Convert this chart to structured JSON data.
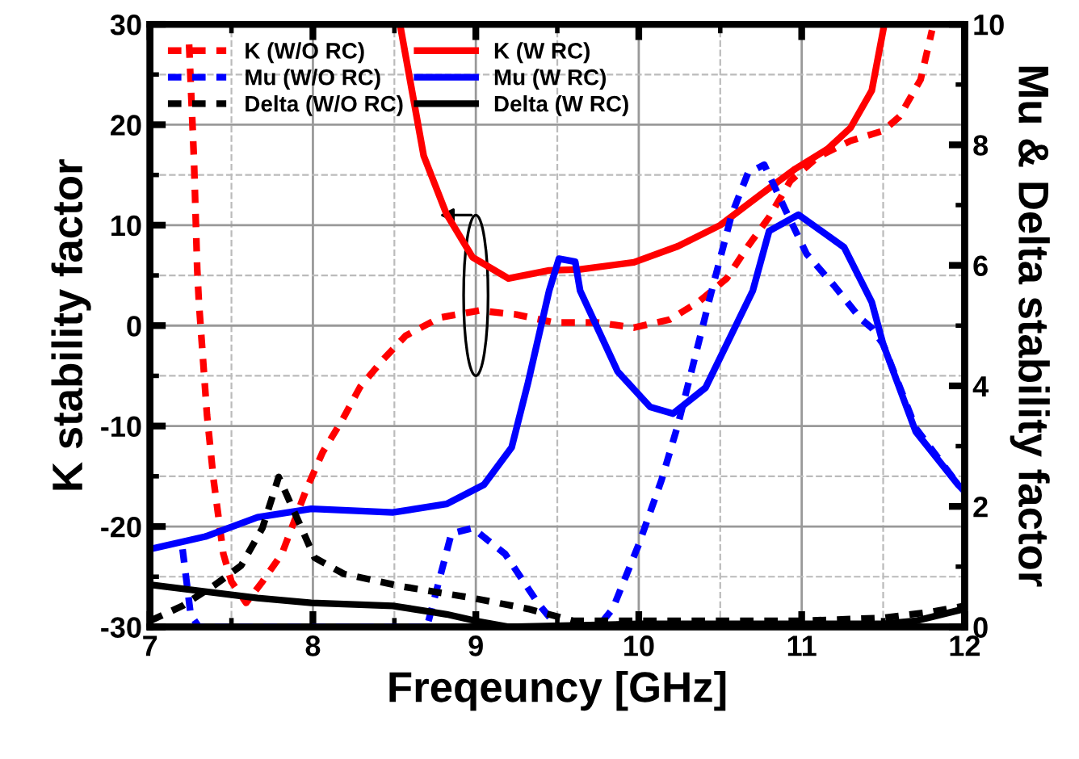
{
  "chart_data": {
    "type": "line",
    "xlabel": "Freqeuncy [GHz]",
    "ylabel": "K stability factor",
    "y2label": "Mu & Delta stability factor",
    "xlim": [
      7,
      12
    ],
    "xticks": [
      7,
      8,
      9,
      10,
      11,
      12
    ],
    "ylim": [
      -30,
      30
    ],
    "yticks": [
      -30,
      -20,
      -10,
      0,
      10,
      20,
      30
    ],
    "y2lim": [
      0,
      10
    ],
    "y2ticks": [
      0,
      2,
      4,
      6,
      8,
      10
    ],
    "grid": true,
    "legend": "top left",
    "marker": "none",
    "series": [
      {
        "name": "K (W/O RC)",
        "color": "#ff0000",
        "line_style": "dashed",
        "x": [
          7.24,
          7.27,
          7.29,
          7.3,
          7.35,
          7.39,
          7.45,
          7.5,
          7.59,
          7.69,
          7.81,
          7.96,
          8.06,
          8.18,
          8.29,
          8.43,
          8.57,
          8.78,
          9.02,
          9.25,
          9.48,
          9.75,
          9.97,
          10.19,
          10.37,
          10.54,
          10.67,
          10.8,
          10.93,
          11.1,
          11.3,
          11.5,
          11.6,
          11.73,
          11.8
        ],
        "values": [
          28,
          16.5,
          5.6,
          2.4,
          -8.9,
          -15.3,
          -22.7,
          -25.5,
          -27.6,
          -25.5,
          -22.7,
          -16.3,
          -12.6,
          -9.4,
          -6.1,
          -3.4,
          -1.0,
          0.8,
          1.5,
          1.1,
          0.3,
          0.3,
          -0.2,
          0.6,
          2.4,
          4.7,
          7.9,
          10.8,
          14.4,
          16.8,
          18.4,
          19.4,
          20.8,
          24.5,
          29.4
        ]
      },
      {
        "name": "K (W RC)",
        "color": "#ff0000",
        "line_style": "solid",
        "x": [
          8.54,
          8.68,
          8.82,
          8.98,
          9.2,
          9.45,
          9.64,
          9.97,
          10.24,
          10.5,
          10.76,
          10.96,
          11.16,
          11.3,
          11.43,
          11.5
        ],
        "values": [
          29.5,
          16.9,
          11.1,
          6.8,
          4.7,
          5.5,
          5.6,
          6.3,
          7.9,
          10.0,
          13.2,
          15.6,
          17.6,
          19.7,
          23.4,
          29.4
        ]
      },
      {
        "name": "Mu (W/O RC)",
        "color": "#0000ff",
        "line_style": "dashed",
        "axis": "y2",
        "x": [
          7.2,
          7.25,
          7.3,
          8.7,
          8.85,
          8.98,
          9.18,
          9.38,
          9.5,
          9.75,
          9.84,
          10.0,
          10.14,
          10.24,
          10.34,
          10.44,
          10.57,
          10.67,
          10.77,
          10.9,
          11.03,
          11.2,
          11.36,
          11.43,
          11.5,
          11.7,
          11.96,
          12.0
        ],
        "values": [
          1.29,
          0.2,
          0,
          0,
          1.55,
          1.64,
          1.21,
          0.4,
          0,
          0,
          0.3,
          1.37,
          2.44,
          3.35,
          4.42,
          5.5,
          6.84,
          7.53,
          7.67,
          6.92,
          6.19,
          5.66,
          5.12,
          4.96,
          4.69,
          3.3,
          2.36,
          2.3
        ]
      },
      {
        "name": "Mu (W RC)",
        "color": "#0000ff",
        "line_style": "solid",
        "axis": "y2",
        "x": [
          7.0,
          7.34,
          7.66,
          7.99,
          8.49,
          8.82,
          9.05,
          9.22,
          9.32,
          9.45,
          9.51,
          9.61,
          9.64,
          9.87,
          10.07,
          10.21,
          10.41,
          10.7,
          10.8,
          10.98,
          11.26,
          11.43,
          11.5,
          11.7,
          11.96,
          12.0
        ],
        "values": [
          1.29,
          1.5,
          1.82,
          1.96,
          1.9,
          2.04,
          2.36,
          2.98,
          4.05,
          5.58,
          6.11,
          6.06,
          5.58,
          4.24,
          3.65,
          3.54,
          3.97,
          5.58,
          6.57,
          6.84,
          6.3,
          5.39,
          4.69,
          3.24,
          2.36,
          2.25
        ]
      },
      {
        "name": "Delta (W/O RC)",
        "color": "#000000",
        "line_style": "dashed",
        "axis": "y2",
        "x": [
          7.0,
          7.2,
          7.4,
          7.56,
          7.69,
          7.79,
          7.93,
          8.01,
          8.19,
          8.55,
          8.98,
          9.32,
          9.6,
          10.0,
          10.5,
          11.0,
          11.5,
          11.8,
          12.0
        ],
        "values": [
          0.1,
          0.35,
          0.7,
          1.02,
          1.64,
          2.49,
          1.64,
          1.15,
          0.88,
          0.67,
          0.48,
          0.3,
          0.1,
          0.1,
          0.1,
          0.1,
          0.15,
          0.25,
          0.35
        ]
      },
      {
        "name": "Delta (W RC)",
        "color": "#000000",
        "line_style": "solid",
        "axis": "y2",
        "x": [
          7.0,
          7.66,
          7.99,
          8.49,
          8.82,
          9.0,
          9.2,
          10.0,
          11.0,
          11.5,
          11.7,
          12.0
        ],
        "values": [
          0.7,
          0.48,
          0.4,
          0.35,
          0.21,
          0.1,
          0.0,
          0.05,
          0.05,
          0.05,
          0.1,
          0.3
        ]
      }
    ]
  }
}
